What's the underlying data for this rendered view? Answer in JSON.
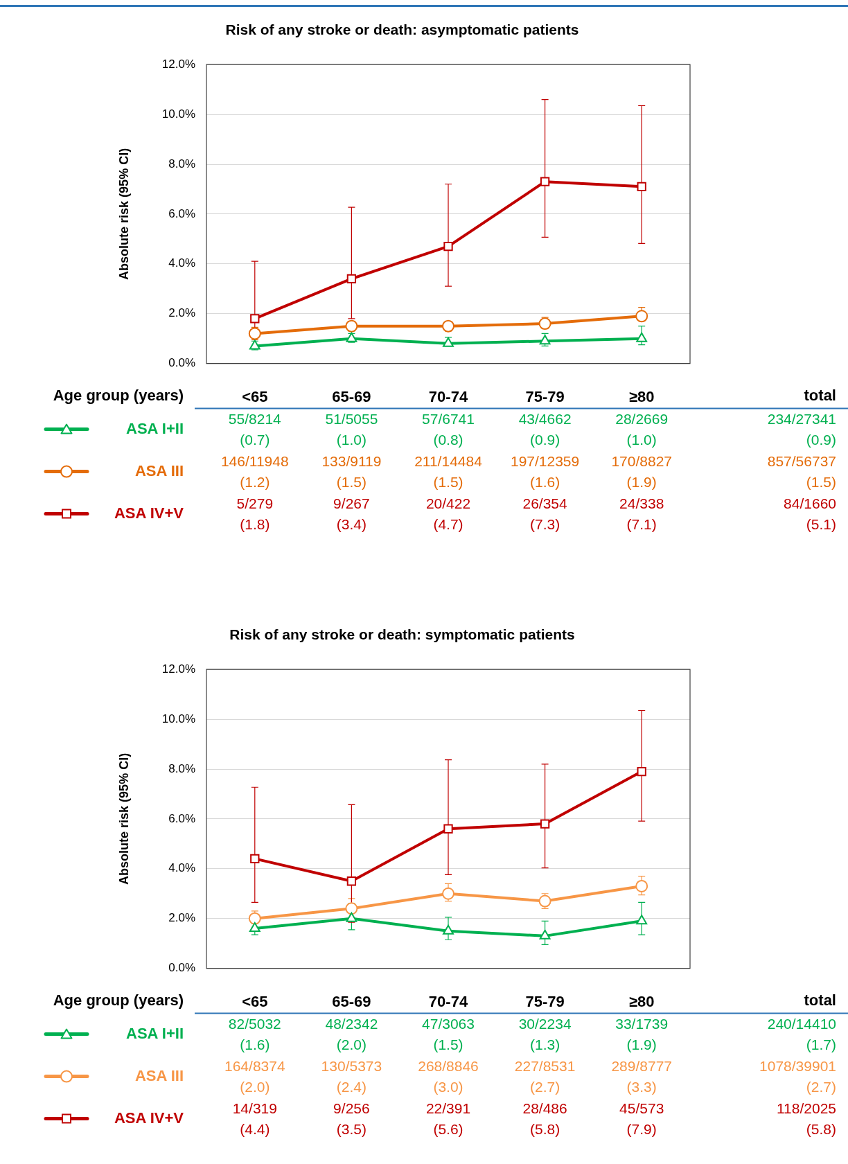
{
  "chart_data": [
    {
      "type": "line",
      "title": "Risk of any stroke or death: asymptomatic patients",
      "xlabel": "Age group (years)",
      "ylabel": "Absolute risk (95% CI)",
      "categories": [
        "<65",
        "65-69",
        "70-74",
        "75-79",
        "≥80"
      ],
      "ylim": [
        0,
        12
      ],
      "yticks": [
        {
          "value": 0,
          "label": "0.0%"
        },
        {
          "value": 2,
          "label": "2.0%"
        },
        {
          "value": 4,
          "label": "4.0%"
        },
        {
          "value": 6,
          "label": "6.0%"
        },
        {
          "value": 8,
          "label": "8.0%"
        },
        {
          "value": 10,
          "label": "10.0%"
        },
        {
          "value": 12,
          "label": "12.0%"
        }
      ],
      "grid": "y",
      "legend": "left",
      "line_style": "solid",
      "series": [
        {
          "name": "ASA I+II",
          "color": "#00b050",
          "marker": "triangle",
          "values": [
            0.7,
            1.0,
            0.8,
            0.9,
            1.0
          ],
          "errors": [
            [
              0.55,
              0.9
            ],
            [
              0.85,
              1.2
            ],
            [
              0.7,
              1.05
            ],
            [
              0.7,
              1.2
            ],
            [
              0.75,
              1.5
            ]
          ],
          "value_labels": [
            "55/8214 (0.7)",
            "51/5055 (1.0)",
            "57/6741 (0.8)",
            "43/4662 (0.9)",
            "28/2669 (1.0)"
          ]
        },
        {
          "name": "ASA III",
          "color": "#e46c0a",
          "marker": "circle",
          "values": [
            1.2,
            1.5,
            1.5,
            1.6,
            1.9
          ],
          "errors": [
            [
              0.95,
              1.45
            ],
            [
              1.3,
              1.7
            ],
            [
              1.3,
              1.65
            ],
            [
              1.4,
              1.85
            ],
            [
              1.7,
              2.25
            ]
          ],
          "value_labels": [
            "146/11948 (1.2)",
            "133/9119 (1.5)",
            "211/14484 (1.5)",
            "197/12359 (1.6)",
            "170/8827 (1.9)"
          ]
        },
        {
          "name": "ASA IV+V",
          "color": "#c00000",
          "marker": "square",
          "values": [
            1.8,
            3.4,
            4.7,
            7.3,
            7.1
          ],
          "errors": [
            [
              1.4,
              4.1
            ],
            [
              1.8,
              6.27
            ],
            [
              3.1,
              7.2
            ],
            [
              5.07,
              10.6
            ],
            [
              4.82,
              10.35
            ]
          ],
          "value_labels": [
            "5/279 (1.8)",
            "9/267 (3.4)",
            "20/422 (4.7)",
            "26/354 (7.3)",
            "24/338 (7.1)"
          ]
        }
      ],
      "annotations": [
        "total",
        "234/27341 (0.9)",
        "857/56737 (1.5)",
        "84/1660 (5.1)"
      ]
    },
    {
      "type": "line",
      "title": "Risk of any stroke or death: symptomatic patients",
      "xlabel": "Age group (years)",
      "ylabel": "Absolute risk (95% CI)",
      "categories": [
        "<65",
        "65-69",
        "70-74",
        "75-79",
        "≥80"
      ],
      "ylim": [
        0,
        12
      ],
      "yticks": [
        {
          "value": 0,
          "label": "0.0%"
        },
        {
          "value": 2,
          "label": "2.0%"
        },
        {
          "value": 4,
          "label": "4.0%"
        },
        {
          "value": 6,
          "label": "6.0%"
        },
        {
          "value": 8,
          "label": "8.0%"
        },
        {
          "value": 10,
          "label": "10.0%"
        },
        {
          "value": 12,
          "label": "12.0%"
        }
      ],
      "grid": "y",
      "legend": "left",
      "line_style": "solid",
      "series": [
        {
          "name": "ASA I+II",
          "color": "#00b050",
          "marker": "triangle",
          "values": [
            1.6,
            2.0,
            1.5,
            1.3,
            1.9
          ],
          "errors": [
            [
              1.35,
              1.8
            ],
            [
              1.55,
              2.6
            ],
            [
              1.15,
              2.05
            ],
            [
              0.95,
              1.9
            ],
            [
              1.35,
              2.65
            ]
          ],
          "value_labels": [
            "82/5032 (1.6)",
            "48/2342 (2.0)",
            "47/3063 (1.5)",
            "30/2234 (1.3)",
            "33/1739 (1.9)"
          ]
        },
        {
          "name": "ASA III",
          "color": "#f79646",
          "marker": "circle",
          "values": [
            2.0,
            2.4,
            3.0,
            2.7,
            3.3
          ],
          "errors": [
            [
              1.65,
              2.3
            ],
            [
              2.0,
              2.8
            ],
            [
              2.7,
              3.4
            ],
            [
              2.4,
              3.0
            ],
            [
              2.95,
              3.7
            ]
          ],
          "value_labels": [
            "164/8374 (2.0)",
            "130/5373 (2.4)",
            "268/8846 (3.0)",
            "227/8531 (2.7)",
            "289/8777 (3.3)"
          ]
        },
        {
          "name": "ASA IV+V",
          "color": "#c00000",
          "marker": "square",
          "values": [
            4.4,
            3.5,
            5.6,
            5.8,
            7.9
          ],
          "errors": [
            [
              2.65,
              7.27
            ],
            [
              1.85,
              6.57
            ],
            [
              3.76,
              8.37
            ],
            [
              4.03,
              8.2
            ],
            [
              5.91,
              10.35
            ]
          ],
          "value_labels": [
            "14/319 (4.4)",
            "9/256 (3.5)",
            "22/391 (5.6)",
            "28/486 (5.8)",
            "45/573 (7.9)"
          ]
        }
      ],
      "annotations": [
        "total",
        "240/14410 (1.7)",
        "1078/39901 (2.7)",
        "118/2025 (5.8)"
      ]
    }
  ]
}
